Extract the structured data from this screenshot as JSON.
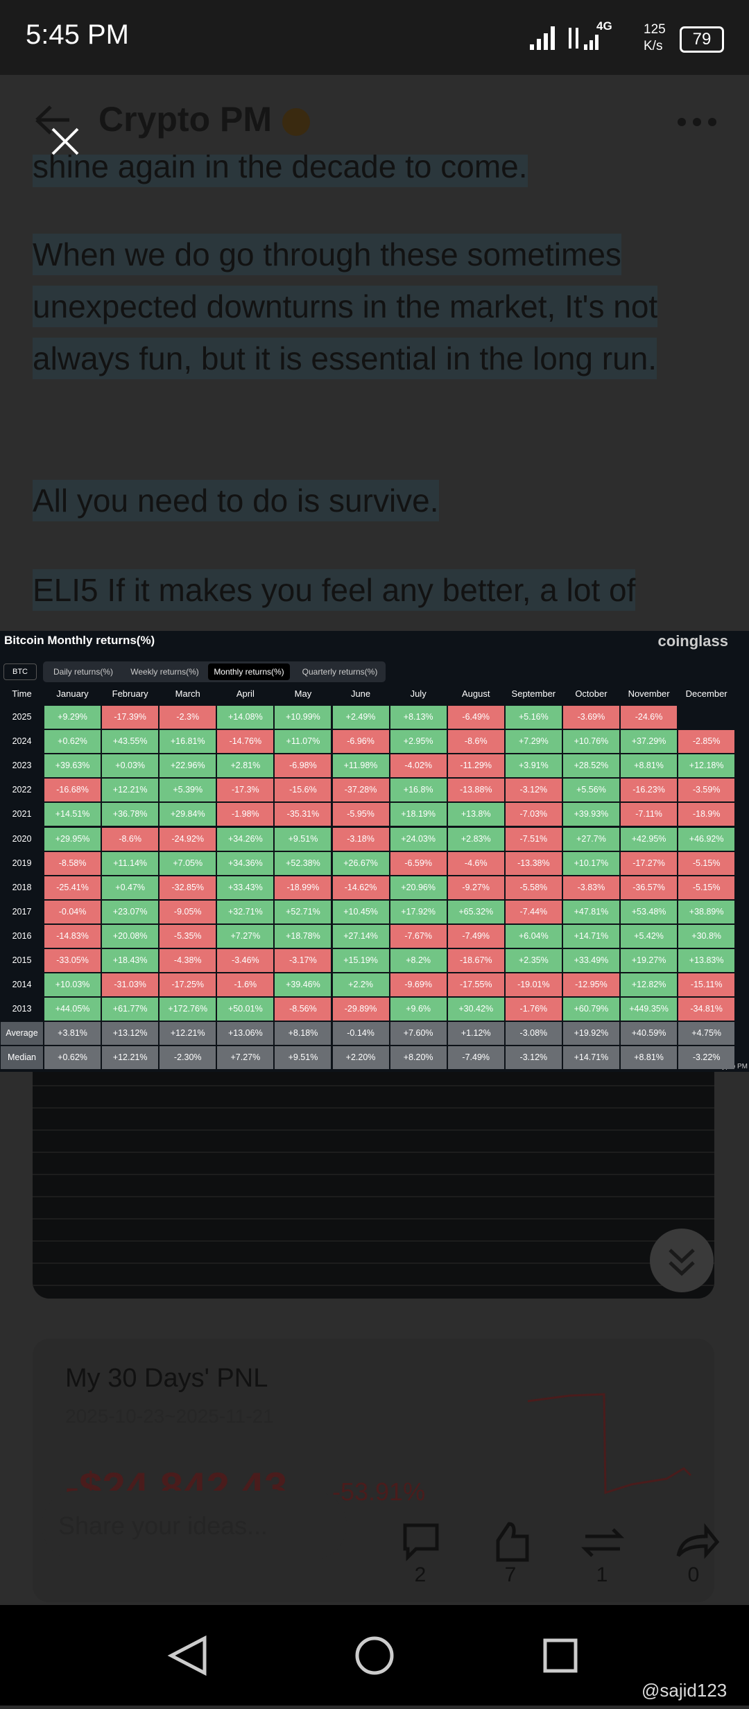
{
  "status_bar": {
    "time": "5:45 PM",
    "network": "4G",
    "speed": "125",
    "speed_unit": "K/s",
    "battery": "79"
  },
  "header": {
    "title": "Crypto PM"
  },
  "post": {
    "paragraphs": [
      "shine again in the decade to come.",
      "When we do go through these sometimes unexpected downturns in the market, It's not always fun, but it is essential in the long run.",
      "All you need to do is survive.",
      "ELI5 If it makes you feel any better, a lot of"
    ]
  },
  "table_image": {
    "title": "Bitcoin Monthly returns(%)",
    "brand": "coinglass",
    "coin": "BTC",
    "tabs": [
      "Daily returns(%)",
      "Weekly returns(%)",
      "Monthly returns(%)",
      "Quarterly returns(%)"
    ],
    "columns": [
      "Time",
      "January",
      "February",
      "March",
      "April",
      "May",
      "June",
      "July",
      "August",
      "September",
      "October",
      "November",
      "December"
    ],
    "rows": [
      [
        "2025",
        "+9.29%",
        "-17.39%",
        "-2.3%",
        "+14.08%",
        "+10.99%",
        "+2.49%",
        "+8.13%",
        "-6.49%",
        "+5.16%",
        "-3.69%",
        "-24.6%"
      ],
      [
        "2024",
        "+0.62%",
        "+43.55%",
        "+16.81%",
        "-14.76%",
        "+11.07%",
        "-6.96%",
        "+2.95%",
        "-8.6%",
        "+7.29%",
        "+10.76%",
        "+37.29%",
        "-2.85%"
      ],
      [
        "2023",
        "+39.63%",
        "+0.03%",
        "+22.96%",
        "+2.81%",
        "-6.98%",
        "+11.98%",
        "-4.02%",
        "-11.29%",
        "+3.91%",
        "+28.52%",
        "+8.81%",
        "+12.18%"
      ],
      [
        "2022",
        "-16.68%",
        "+12.21%",
        "+5.39%",
        "-17.3%",
        "-15.6%",
        "-37.28%",
        "+16.8%",
        "-13.88%",
        "-3.12%",
        "+5.56%",
        "-16.23%",
        "-3.59%"
      ],
      [
        "2021",
        "+14.51%",
        "+36.78%",
        "+29.84%",
        "-1.98%",
        "-35.31%",
        "-5.95%",
        "+18.19%",
        "+13.8%",
        "-7.03%",
        "+39.93%",
        "-7.11%",
        "-18.9%"
      ],
      [
        "2020",
        "+29.95%",
        "-8.6%",
        "-24.92%",
        "+34.26%",
        "+9.51%",
        "-3.18%",
        "+24.03%",
        "+2.83%",
        "-7.51%",
        "+27.7%",
        "+42.95%",
        "+46.92%"
      ],
      [
        "2019",
        "-8.58%",
        "+11.14%",
        "+7.05%",
        "+34.36%",
        "+52.38%",
        "+26.67%",
        "-6.59%",
        "-4.6%",
        "-13.38%",
        "+10.17%",
        "-17.27%",
        "-5.15%"
      ],
      [
        "2018",
        "-25.41%",
        "+0.47%",
        "-32.85%",
        "+33.43%",
        "-18.99%",
        "-14.62%",
        "+20.96%",
        "-9.27%",
        "-5.58%",
        "-3.83%",
        "-36.57%",
        "-5.15%"
      ],
      [
        "2017",
        "-0.04%",
        "+23.07%",
        "-9.05%",
        "+32.71%",
        "+52.71%",
        "+10.45%",
        "+17.92%",
        "+65.32%",
        "-7.44%",
        "+47.81%",
        "+53.48%",
        "+38.89%"
      ],
      [
        "2016",
        "-14.83%",
        "+20.08%",
        "-5.35%",
        "+7.27%",
        "+18.78%",
        "+27.14%",
        "-7.67%",
        "-7.49%",
        "+6.04%",
        "+14.71%",
        "+5.42%",
        "+30.8%"
      ],
      [
        "2015",
        "-33.05%",
        "+18.43%",
        "-4.38%",
        "-3.46%",
        "-3.17%",
        "+15.19%",
        "+8.2%",
        "-18.67%",
        "+2.35%",
        "+33.49%",
        "+19.27%",
        "+13.83%"
      ],
      [
        "2014",
        "+10.03%",
        "-31.03%",
        "-17.25%",
        "-1.6%",
        "+39.46%",
        "+2.2%",
        "-9.69%",
        "-17.55%",
        "-19.01%",
        "-12.95%",
        "+12.82%",
        "-15.11%"
      ],
      [
        "2013",
        "+44.05%",
        "+61.77%",
        "+172.76%",
        "+50.01%",
        "-8.56%",
        "-29.89%",
        "+9.6%",
        "+30.42%",
        "-1.76%",
        "+60.79%",
        "+449.35%",
        "-34.81%"
      ],
      [
        "Average",
        "+3.81%",
        "+13.12%",
        "+12.21%",
        "+13.06%",
        "+8.18%",
        "-0.14%",
        "+7.60%",
        "+1.12%",
        "-3.08%",
        "+19.92%",
        "+40.59%",
        "+4.75%"
      ],
      [
        "Median",
        "+0.62%",
        "+12.21%",
        "-2.30%",
        "+7.27%",
        "+9.51%",
        "+2.20%",
        "+8.20%",
        "-7.49%",
        "-3.12%",
        "+14.71%",
        "+8.81%",
        "-3.22%"
      ]
    ],
    "summary_rows": [
      "Average",
      "Median"
    ],
    "watermark": "© Crypto PM"
  },
  "pnl_card": {
    "title": "My 30 Days' PNL",
    "date_range": "2025-10-23~2025-11-21",
    "amount": "-$24,842.43",
    "percent": "-53.91%"
  },
  "actions": {
    "placeholder": "Share your ideas...",
    "comments": 2,
    "likes": 7,
    "reposts": 1,
    "shares": 0
  },
  "watermark": "@sajid123"
}
